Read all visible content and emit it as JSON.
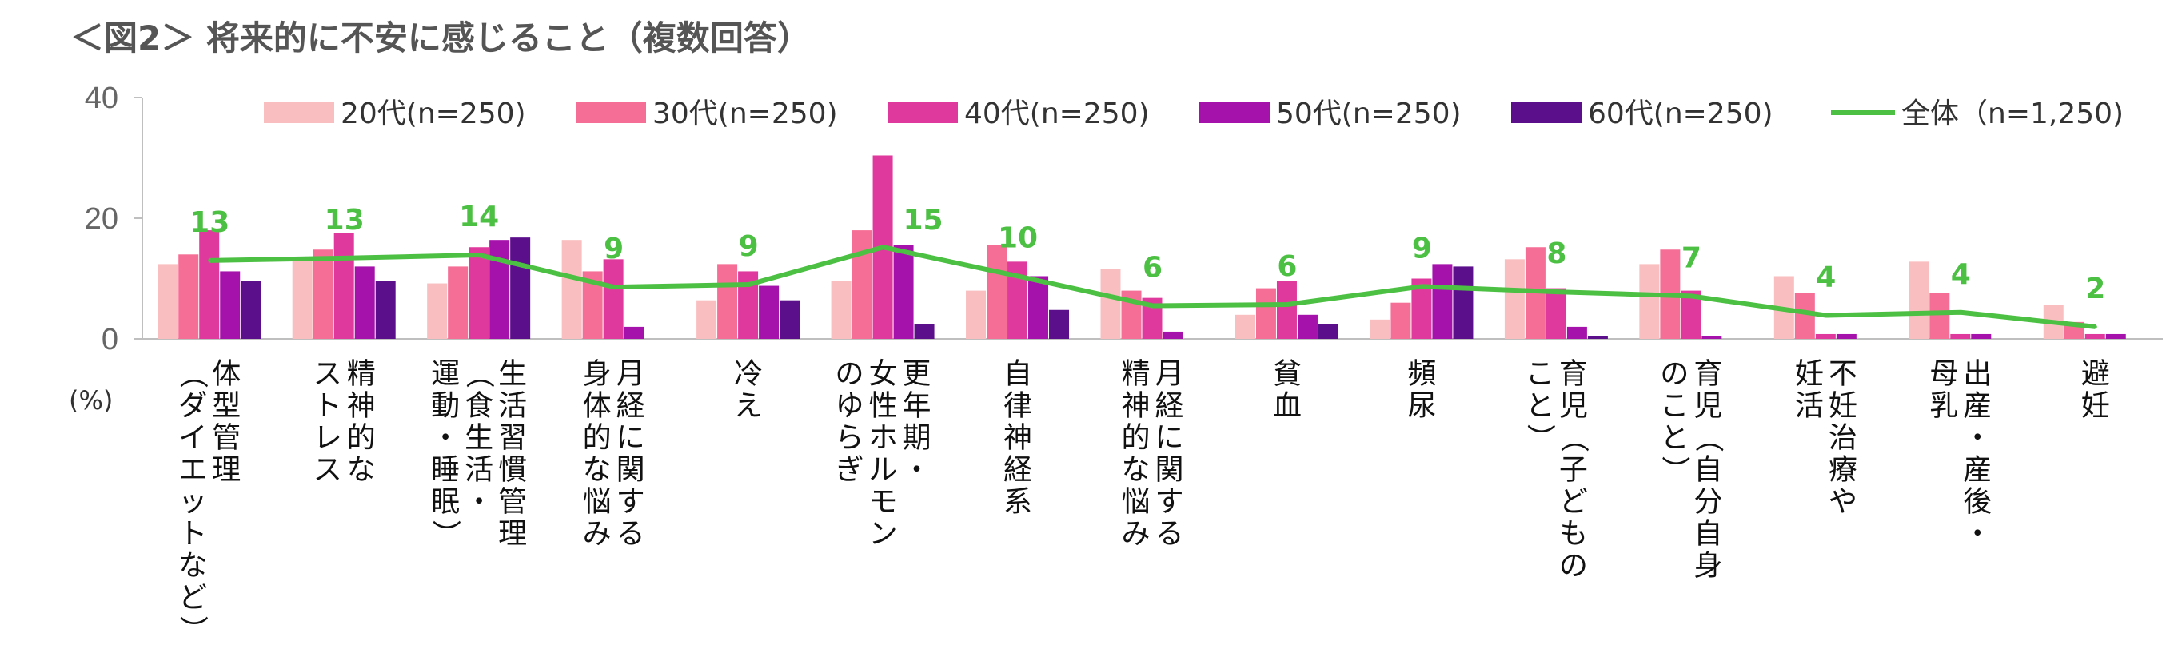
{
  "chart_data": {
    "type": "bar",
    "title": "＜図2＞ 将来的に不安に感じること（複数回答）",
    "unit_label": "(%)",
    "ylim": [
      0,
      40
    ],
    "yticks": [
      "0",
      "20",
      "40"
    ],
    "grid": false,
    "legend_position": "top",
    "categories": [
      [
        "体型管理",
        "（ダイエットなど）"
      ],
      [
        "精神的な",
        "ストレス"
      ],
      [
        "生活習慣管理",
        "（食生活・",
        "運動・睡眠）"
      ],
      [
        "月経に関する",
        "身体的な悩み"
      ],
      [
        "冷え"
      ],
      [
        "更年期・",
        "女性ホルモン",
        "のゆらぎ"
      ],
      [
        "自律神経系"
      ],
      [
        "月経に関する",
        "精神的な悩み"
      ],
      [
        "貧血"
      ],
      [
        "頻尿"
      ],
      [
        "育児（子どもの",
        "こと）"
      ],
      [
        "育児（自分自身",
        "のこと）"
      ],
      [
        "不妊治療や",
        "妊活"
      ],
      [
        "出産・産後・",
        "母乳"
      ],
      [
        "避妊"
      ]
    ],
    "series": [
      {
        "name": "20代(n=250)",
        "color": "#f9bfc0",
        "values": [
          12.4,
          13.2,
          9.2,
          16.4,
          6.4,
          9.6,
          8.0,
          11.6,
          4.0,
          3.2,
          13.2,
          12.4,
          10.4,
          12.8,
          5.6
        ]
      },
      {
        "name": "30代(n=250)",
        "color": "#f56e96",
        "values": [
          14.0,
          14.8,
          12.0,
          11.2,
          12.4,
          18.0,
          15.6,
          8.0,
          8.4,
          6.0,
          15.2,
          14.8,
          7.6,
          7.6,
          2.8
        ]
      },
      {
        "name": "40代(n=250)",
        "color": "#e0399d",
        "values": [
          18.0,
          17.6,
          15.2,
          13.2,
          11.2,
          30.4,
          12.8,
          6.8,
          9.6,
          10.0,
          8.4,
          8.0,
          0.8,
          0.8,
          0.8
        ]
      },
      {
        "name": "50代(n=250)",
        "color": "#a511ab",
        "values": [
          11.2,
          12.0,
          16.4,
          2.0,
          8.8,
          15.6,
          10.4,
          1.2,
          4.0,
          12.4,
          2.0,
          0.4,
          0.8,
          0.8,
          0.8
        ]
      },
      {
        "name": "60代(n=250)",
        "color": "#5c0f8b",
        "values": [
          9.6,
          9.6,
          16.8,
          0.0,
          6.4,
          2.4,
          4.8,
          0.0,
          2.4,
          12.0,
          0.4,
          0.0,
          0.0,
          0.0,
          0.0
        ]
      }
    ],
    "line": {
      "name": "全体（n=1,250)",
      "color": "#4cc043",
      "values": [
        13.0,
        13.4,
        13.9,
        8.6,
        9.0,
        15.2,
        10.4,
        5.5,
        5.7,
        8.7,
        7.8,
        7.1,
        3.9,
        4.4,
        2.0
      ],
      "labels": [
        "13",
        "13",
        "14",
        "9",
        "9",
        "15",
        "10",
        "6",
        "6",
        "9",
        "8",
        "7",
        "4",
        "4",
        "2"
      ]
    }
  }
}
